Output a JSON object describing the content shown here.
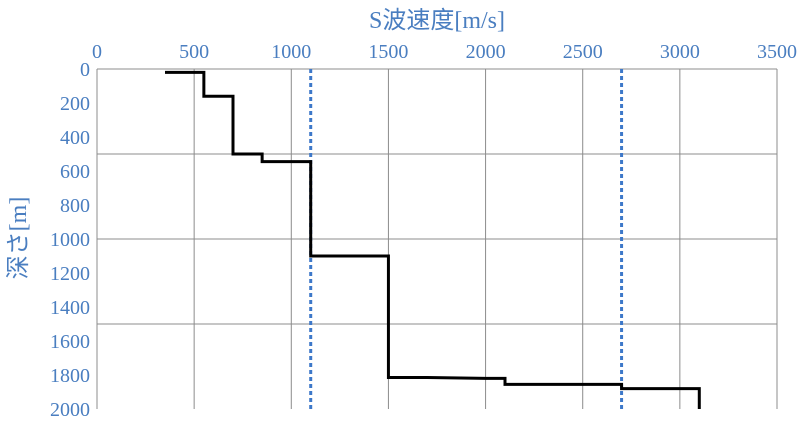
{
  "chart_data": {
    "type": "line",
    "title": "",
    "xlabel": "S波速度[m/s]",
    "ylabel": "深さ[m]",
    "x_axis_position": "top",
    "y_axis_inverted": true,
    "xlim": [
      0,
      3500
    ],
    "ylim": [
      0,
      2000
    ],
    "xticks": [
      "0",
      "500",
      "1000",
      "1500",
      "2000",
      "2500",
      "3000",
      "3500"
    ],
    "yticks": [
      "0",
      "200",
      "400",
      "600",
      "800",
      "1000",
      "1200",
      "1400",
      "1600",
      "1800",
      "2000"
    ],
    "x_gridlines": [
      500,
      1000,
      1500,
      2000,
      2500,
      3000,
      3500
    ],
    "y_gridlines": [
      500,
      1000,
      1500
    ],
    "series": [
      {
        "color": "#000000",
        "style": "step",
        "points": [
          [
            350,
            20
          ],
          [
            550,
            20
          ],
          [
            550,
            160
          ],
          [
            700,
            160
          ],
          [
            700,
            500
          ],
          [
            850,
            500
          ],
          [
            850,
            545
          ],
          [
            1100,
            545
          ],
          [
            1100,
            1100
          ],
          [
            1500,
            1100
          ],
          [
            1500,
            1815
          ],
          [
            1700,
            1815
          ],
          [
            2000,
            1820
          ],
          [
            2100,
            1820
          ],
          [
            2100,
            1855
          ],
          [
            2700,
            1855
          ],
          [
            2700,
            1880
          ],
          [
            3100,
            1880
          ],
          [
            3100,
            2000
          ]
        ]
      }
    ],
    "reference_lines": [
      {
        "axis": "x",
        "value": 1100,
        "color": "#3d78c9",
        "style": "dotted"
      },
      {
        "axis": "x",
        "value": 2700,
        "color": "#3d78c9",
        "style": "dotted"
      }
    ]
  }
}
